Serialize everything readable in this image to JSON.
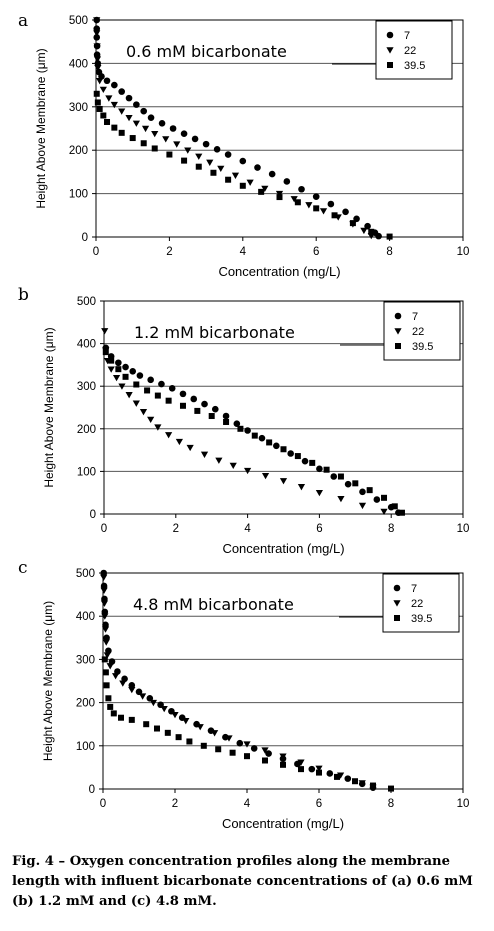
{
  "figure": {
    "caption_label": "Fig. 4",
    "caption_dash": " – ",
    "caption_text": "Oxygen concentration profiles along the membrane length with influent bicarbonate concentrations of (a) 0.6 mM (b) 1.2 mM and (c) 4.8 mM.",
    "colors": {
      "axis": "#000000",
      "grid": "#555555",
      "marker": "#000000"
    }
  },
  "chart_data": [
    {
      "panel_label": "a",
      "type": "scatter",
      "annotation": "0.6 mM bicarbonate",
      "xlabel": "Concentration (mg/L)",
      "ylabel": "Height Above Membrane (μm)",
      "xlim": [
        0,
        10
      ],
      "ylim": [
        0,
        500
      ],
      "xticks": [
        "0",
        "2",
        "4",
        "6",
        "8",
        "10"
      ],
      "yticks": [
        "0",
        "100",
        "200",
        "300",
        "400",
        "500"
      ],
      "grid": "horizontal",
      "legend_position": "top-right",
      "series": [
        {
          "name": "7",
          "marker": "circle",
          "points": [
            [
              0.02,
              500
            ],
            [
              0.02,
              480
            ],
            [
              0.02,
              460
            ],
            [
              0.03,
              440
            ],
            [
              0.03,
              420
            ],
            [
              0.05,
              400
            ],
            [
              0.08,
              380
            ],
            [
              0.15,
              370
            ],
            [
              0.3,
              360
            ],
            [
              0.5,
              350
            ],
            [
              0.7,
              335
            ],
            [
              0.9,
              320
            ],
            [
              1.1,
              305
            ],
            [
              1.3,
              290
            ],
            [
              1.5,
              275
            ],
            [
              1.8,
              262
            ],
            [
              2.1,
              250
            ],
            [
              2.4,
              238
            ],
            [
              2.7,
              226
            ],
            [
              3.0,
              214
            ],
            [
              3.3,
              202
            ],
            [
              3.6,
              190
            ],
            [
              4.0,
              175
            ],
            [
              4.4,
              160
            ],
            [
              4.8,
              145
            ],
            [
              5.2,
              128
            ],
            [
              5.6,
              110
            ],
            [
              6.0,
              93
            ],
            [
              6.4,
              76
            ],
            [
              6.8,
              58
            ],
            [
              7.1,
              42
            ],
            [
              7.4,
              25
            ],
            [
              7.6,
              10
            ],
            [
              7.7,
              2
            ]
          ]
        },
        {
          "name": "22",
          "marker": "triangle",
          "points": [
            [
              0.02,
              500
            ],
            [
              0.02,
              470
            ],
            [
              0.03,
              440
            ],
            [
              0.04,
              410
            ],
            [
              0.05,
              390
            ],
            [
              0.1,
              360
            ],
            [
              0.2,
              340
            ],
            [
              0.35,
              320
            ],
            [
              0.5,
              305
            ],
            [
              0.7,
              290
            ],
            [
              0.9,
              275
            ],
            [
              1.1,
              262
            ],
            [
              1.35,
              250
            ],
            [
              1.6,
              238
            ],
            [
              1.9,
              226
            ],
            [
              2.2,
              214
            ],
            [
              2.5,
              200
            ],
            [
              2.8,
              186
            ],
            [
              3.1,
              172
            ],
            [
              3.4,
              158
            ],
            [
              3.8,
              142
            ],
            [
              4.2,
              126
            ],
            [
              4.6,
              112
            ],
            [
              5.0,
              100
            ],
            [
              5.4,
              88
            ],
            [
              5.8,
              74
            ],
            [
              6.2,
              60
            ],
            [
              6.6,
              46
            ],
            [
              7.0,
              30
            ],
            [
              7.3,
              15
            ],
            [
              7.5,
              3
            ]
          ]
        },
        {
          "name": "39.5",
          "marker": "square",
          "points": [
            [
              0.02,
              330
            ],
            [
              0.05,
              310
            ],
            [
              0.1,
              295
            ],
            [
              0.2,
              280
            ],
            [
              0.3,
              265
            ],
            [
              0.5,
              252
            ],
            [
              0.7,
              240
            ],
            [
              1.0,
              228
            ],
            [
              1.3,
              216
            ],
            [
              1.6,
              204
            ],
            [
              2.0,
              190
            ],
            [
              2.4,
              176
            ],
            [
              2.8,
              162
            ],
            [
              3.2,
              148
            ],
            [
              3.6,
              132
            ],
            [
              4.0,
              118
            ],
            [
              4.5,
              104
            ],
            [
              5.0,
              92
            ],
            [
              5.5,
              80
            ],
            [
              6.0,
              66
            ],
            [
              6.5,
              50
            ],
            [
              7.0,
              32
            ],
            [
              7.5,
              12
            ],
            [
              8.0,
              1
            ]
          ]
        }
      ]
    },
    {
      "panel_label": "b",
      "type": "scatter",
      "annotation": "1.2 mM  bicarbonate",
      "xlabel": "Concentration (mg/L)",
      "ylabel": "Height Above Membrane (μm)",
      "xlim": [
        0,
        10
      ],
      "ylim": [
        0,
        500
      ],
      "xticks": [
        "0",
        "2",
        "4",
        "6",
        "8",
        "10"
      ],
      "yticks": [
        "0",
        "100",
        "200",
        "300",
        "400",
        "500"
      ],
      "grid": "horizontal",
      "legend_position": "top-right",
      "series": [
        {
          "name": "7",
          "marker": "circle",
          "points": [
            [
              0.05,
              390
            ],
            [
              0.2,
              370
            ],
            [
              0.4,
              355
            ],
            [
              0.6,
              345
            ],
            [
              0.8,
              335
            ],
            [
              1.0,
              325
            ],
            [
              1.3,
              315
            ],
            [
              1.6,
              305
            ],
            [
              1.9,
              295
            ],
            [
              2.2,
              282
            ],
            [
              2.5,
              270
            ],
            [
              2.8,
              258
            ],
            [
              3.1,
              246
            ],
            [
              3.4,
              230
            ],
            [
              3.7,
              212
            ],
            [
              4.0,
              196
            ],
            [
              4.4,
              178
            ],
            [
              4.8,
              160
            ],
            [
              5.2,
              142
            ],
            [
              5.6,
              124
            ],
            [
              6.0,
              106
            ],
            [
              6.4,
              88
            ],
            [
              6.8,
              70
            ],
            [
              7.2,
              52
            ],
            [
              7.6,
              34
            ],
            [
              8.0,
              16
            ],
            [
              8.2,
              3
            ]
          ]
        },
        {
          "name": "22",
          "marker": "triangle",
          "points": [
            [
              0.02,
              430
            ],
            [
              0.05,
              385
            ],
            [
              0.1,
              360
            ],
            [
              0.2,
              340
            ],
            [
              0.35,
              320
            ],
            [
              0.5,
              300
            ],
            [
              0.7,
              280
            ],
            [
              0.9,
              260
            ],
            [
              1.1,
              240
            ],
            [
              1.3,
              222
            ],
            [
              1.5,
              204
            ],
            [
              1.8,
              186
            ],
            [
              2.1,
              170
            ],
            [
              2.4,
              156
            ],
            [
              2.8,
              140
            ],
            [
              3.2,
              126
            ],
            [
              3.6,
              114
            ],
            [
              4.0,
              102
            ],
            [
              4.5,
              90
            ],
            [
              5.0,
              78
            ],
            [
              5.5,
              64
            ],
            [
              6.0,
              50
            ],
            [
              6.6,
              36
            ],
            [
              7.2,
              20
            ],
            [
              7.8,
              6
            ]
          ]
        },
        {
          "name": "39.5",
          "marker": "square",
          "points": [
            [
              0.05,
              380
            ],
            [
              0.2,
              360
            ],
            [
              0.4,
              340
            ],
            [
              0.6,
              322
            ],
            [
              0.9,
              304
            ],
            [
              1.2,
              290
            ],
            [
              1.5,
              278
            ],
            [
              1.8,
              266
            ],
            [
              2.2,
              254
            ],
            [
              2.6,
              242
            ],
            [
              3.0,
              230
            ],
            [
              3.4,
              216
            ],
            [
              3.8,
              200
            ],
            [
              4.2,
              184
            ],
            [
              4.6,
              168
            ],
            [
              5.0,
              152
            ],
            [
              5.4,
              136
            ],
            [
              5.8,
              120
            ],
            [
              6.2,
              104
            ],
            [
              6.6,
              88
            ],
            [
              7.0,
              72
            ],
            [
              7.4,
              56
            ],
            [
              7.8,
              38
            ],
            [
              8.1,
              18
            ],
            [
              8.3,
              3
            ]
          ]
        }
      ]
    },
    {
      "panel_label": "c",
      "type": "scatter",
      "annotation": "4.8 mM  bicarbonate",
      "xlabel": "Concentration (mg/L)",
      "ylabel": "Height Above Membrane (μm)",
      "xlim": [
        0,
        10
      ],
      "ylim": [
        0,
        500
      ],
      "xticks": [
        "0",
        "2",
        "4",
        "6",
        "8",
        "10"
      ],
      "yticks": [
        "0",
        "100",
        "200",
        "300",
        "400",
        "500"
      ],
      "grid": "horizontal",
      "legend_position": "top-right",
      "series": [
        {
          "name": "7",
          "marker": "circle",
          "points": [
            [
              0.02,
              500
            ],
            [
              0.03,
              470
            ],
            [
              0.04,
              440
            ],
            [
              0.05,
              410
            ],
            [
              0.07,
              380
            ],
            [
              0.1,
              350
            ],
            [
              0.15,
              320
            ],
            [
              0.25,
              295
            ],
            [
              0.4,
              272
            ],
            [
              0.6,
              255
            ],
            [
              0.8,
              240
            ],
            [
              1.0,
              225
            ],
            [
              1.3,
              210
            ],
            [
              1.6,
              195
            ],
            [
              1.9,
              180
            ],
            [
              2.2,
              165
            ],
            [
              2.6,
              150
            ],
            [
              3.0,
              135
            ],
            [
              3.4,
              120
            ],
            [
              3.8,
              106
            ],
            [
              4.2,
              94
            ],
            [
              4.6,
              82
            ],
            [
              5.0,
              70
            ],
            [
              5.4,
              58
            ],
            [
              5.8,
              46
            ],
            [
              6.3,
              36
            ],
            [
              6.8,
              24
            ],
            [
              7.2,
              12
            ],
            [
              7.5,
              3
            ]
          ]
        },
        {
          "name": "22",
          "marker": "triangle",
          "points": [
            [
              0.02,
              490
            ],
            [
              0.03,
              460
            ],
            [
              0.04,
              430
            ],
            [
              0.05,
              400
            ],
            [
              0.07,
              370
            ],
            [
              0.09,
              340
            ],
            [
              0.12,
              310
            ],
            [
              0.2,
              285
            ],
            [
              0.35,
              262
            ],
            [
              0.55,
              245
            ],
            [
              0.8,
              230
            ],
            [
              1.1,
              215
            ],
            [
              1.4,
              200
            ],
            [
              1.7,
              186
            ],
            [
              2.0,
              172
            ],
            [
              2.3,
              158
            ],
            [
              2.7,
              144
            ],
            [
              3.1,
              130
            ],
            [
              3.5,
              118
            ],
            [
              4.0,
              104
            ],
            [
              4.5,
              90
            ],
            [
              5.0,
              76
            ],
            [
              5.5,
              62
            ],
            [
              6.0,
              48
            ],
            [
              6.6,
              32
            ],
            [
              7.2,
              14
            ],
            [
              7.5,
              4
            ]
          ]
        },
        {
          "name": "39.5",
          "marker": "square",
          "points": [
            [
              0.05,
              300
            ],
            [
              0.08,
              270
            ],
            [
              0.1,
              240
            ],
            [
              0.15,
              210
            ],
            [
              0.2,
              190
            ],
            [
              0.3,
              175
            ],
            [
              0.5,
              165
            ],
            [
              0.8,
              160
            ],
            [
              1.2,
              150
            ],
            [
              1.5,
              140
            ],
            [
              1.8,
              130
            ],
            [
              2.1,
              120
            ],
            [
              2.4,
              110
            ],
            [
              2.8,
              100
            ],
            [
              3.2,
              92
            ],
            [
              3.6,
              84
            ],
            [
              4.0,
              76
            ],
            [
              4.5,
              66
            ],
            [
              5.0,
              56
            ],
            [
              5.5,
              46
            ],
            [
              6.0,
              38
            ],
            [
              6.5,
              28
            ],
            [
              7.0,
              18
            ],
            [
              7.5,
              8
            ],
            [
              8.0,
              1
            ]
          ]
        }
      ]
    }
  ]
}
